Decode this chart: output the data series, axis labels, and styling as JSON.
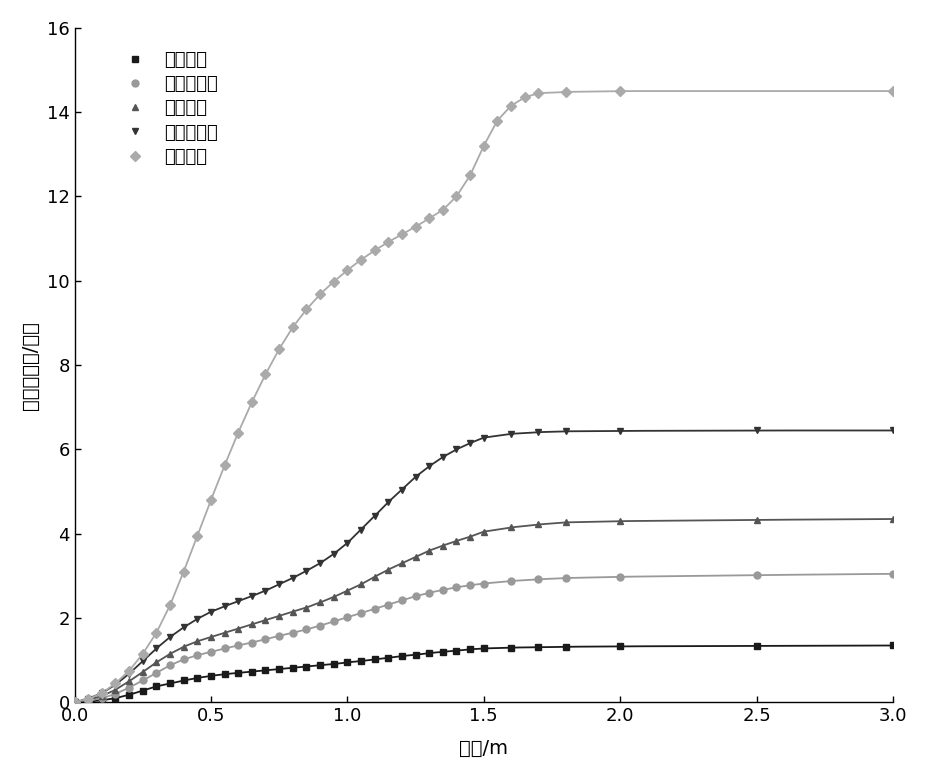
{
  "series": [
    {
      "label": "低收入户",
      "color": "#1a1a1a",
      "marker": "s",
      "markersize": 5,
      "plateau": 1.35,
      "steps": [
        [
          0.0,
          0.0
        ],
        [
          0.05,
          0.02
        ],
        [
          0.1,
          0.05
        ],
        [
          0.15,
          0.1
        ],
        [
          0.2,
          0.18
        ],
        [
          0.25,
          0.28
        ],
        [
          0.3,
          0.38
        ],
        [
          0.35,
          0.45
        ],
        [
          0.4,
          0.52
        ],
        [
          0.45,
          0.58
        ],
        [
          0.5,
          0.63
        ],
        [
          0.55,
          0.67
        ],
        [
          0.6,
          0.7
        ],
        [
          0.65,
          0.73
        ],
        [
          0.7,
          0.76
        ],
        [
          0.75,
          0.79
        ],
        [
          0.8,
          0.82
        ],
        [
          0.85,
          0.85
        ],
        [
          0.9,
          0.88
        ],
        [
          0.95,
          0.91
        ],
        [
          1.0,
          0.95
        ],
        [
          1.05,
          0.98
        ],
        [
          1.1,
          1.02
        ],
        [
          1.15,
          1.06
        ],
        [
          1.2,
          1.1
        ],
        [
          1.25,
          1.13
        ],
        [
          1.3,
          1.17
        ],
        [
          1.35,
          1.2
        ],
        [
          1.4,
          1.23
        ],
        [
          1.45,
          1.26
        ],
        [
          1.5,
          1.28
        ],
        [
          1.6,
          1.3
        ],
        [
          1.7,
          1.31
        ],
        [
          1.8,
          1.32
        ],
        [
          2.0,
          1.33
        ],
        [
          2.5,
          1.34
        ],
        [
          3.0,
          1.35
        ]
      ]
    },
    {
      "label": "中低收入户",
      "color": "#999999",
      "marker": "o",
      "markersize": 5,
      "plateau": 3.05,
      "steps": [
        [
          0.0,
          0.0
        ],
        [
          0.05,
          0.04
        ],
        [
          0.1,
          0.1
        ],
        [
          0.15,
          0.2
        ],
        [
          0.2,
          0.35
        ],
        [
          0.25,
          0.52
        ],
        [
          0.3,
          0.7
        ],
        [
          0.35,
          0.88
        ],
        [
          0.4,
          1.02
        ],
        [
          0.45,
          1.12
        ],
        [
          0.5,
          1.2
        ],
        [
          0.55,
          1.28
        ],
        [
          0.6,
          1.35
        ],
        [
          0.65,
          1.42
        ],
        [
          0.7,
          1.5
        ],
        [
          0.75,
          1.58
        ],
        [
          0.8,
          1.65
        ],
        [
          0.85,
          1.73
        ],
        [
          0.9,
          1.82
        ],
        [
          0.95,
          1.92
        ],
        [
          1.0,
          2.02
        ],
        [
          1.05,
          2.12
        ],
        [
          1.1,
          2.22
        ],
        [
          1.15,
          2.32
        ],
        [
          1.2,
          2.42
        ],
        [
          1.25,
          2.52
        ],
        [
          1.3,
          2.6
        ],
        [
          1.35,
          2.67
        ],
        [
          1.4,
          2.73
        ],
        [
          1.45,
          2.78
        ],
        [
          1.5,
          2.82
        ],
        [
          1.6,
          2.88
        ],
        [
          1.7,
          2.92
        ],
        [
          1.8,
          2.95
        ],
        [
          2.0,
          2.98
        ],
        [
          2.5,
          3.02
        ],
        [
          3.0,
          3.05
        ]
      ]
    },
    {
      "label": "中收入户",
      "color": "#555555",
      "marker": "^",
      "markersize": 5,
      "plateau": 4.35,
      "steps": [
        [
          0.0,
          0.0
        ],
        [
          0.05,
          0.06
        ],
        [
          0.1,
          0.15
        ],
        [
          0.15,
          0.3
        ],
        [
          0.2,
          0.5
        ],
        [
          0.25,
          0.72
        ],
        [
          0.3,
          0.95
        ],
        [
          0.35,
          1.15
        ],
        [
          0.4,
          1.32
        ],
        [
          0.45,
          1.45
        ],
        [
          0.5,
          1.55
        ],
        [
          0.55,
          1.65
        ],
        [
          0.6,
          1.75
        ],
        [
          0.65,
          1.85
        ],
        [
          0.7,
          1.95
        ],
        [
          0.75,
          2.05
        ],
        [
          0.8,
          2.15
        ],
        [
          0.85,
          2.25
        ],
        [
          0.9,
          2.37
        ],
        [
          0.95,
          2.5
        ],
        [
          1.0,
          2.65
        ],
        [
          1.05,
          2.8
        ],
        [
          1.1,
          2.98
        ],
        [
          1.15,
          3.15
        ],
        [
          1.2,
          3.3
        ],
        [
          1.25,
          3.45
        ],
        [
          1.3,
          3.6
        ],
        [
          1.35,
          3.72
        ],
        [
          1.4,
          3.83
        ],
        [
          1.45,
          3.93
        ],
        [
          1.5,
          4.05
        ],
        [
          1.6,
          4.15
        ],
        [
          1.7,
          4.22
        ],
        [
          1.8,
          4.27
        ],
        [
          2.0,
          4.3
        ],
        [
          2.5,
          4.33
        ],
        [
          3.0,
          4.35
        ]
      ]
    },
    {
      "label": "中高收入户",
      "color": "#333333",
      "marker": "v",
      "markersize": 5,
      "plateau": 6.45,
      "steps": [
        [
          0.0,
          0.0
        ],
        [
          0.05,
          0.09
        ],
        [
          0.1,
          0.22
        ],
        [
          0.15,
          0.42
        ],
        [
          0.2,
          0.68
        ],
        [
          0.25,
          0.98
        ],
        [
          0.3,
          1.28
        ],
        [
          0.35,
          1.55
        ],
        [
          0.4,
          1.78
        ],
        [
          0.45,
          1.98
        ],
        [
          0.5,
          2.15
        ],
        [
          0.55,
          2.28
        ],
        [
          0.6,
          2.4
        ],
        [
          0.65,
          2.52
        ],
        [
          0.7,
          2.65
        ],
        [
          0.75,
          2.8
        ],
        [
          0.8,
          2.95
        ],
        [
          0.85,
          3.12
        ],
        [
          0.9,
          3.3
        ],
        [
          0.95,
          3.52
        ],
        [
          1.0,
          3.78
        ],
        [
          1.05,
          4.1
        ],
        [
          1.1,
          4.42
        ],
        [
          1.15,
          4.75
        ],
        [
          1.2,
          5.05
        ],
        [
          1.25,
          5.35
        ],
        [
          1.3,
          5.6
        ],
        [
          1.35,
          5.82
        ],
        [
          1.4,
          6.0
        ],
        [
          1.45,
          6.15
        ],
        [
          1.5,
          6.28
        ],
        [
          1.6,
          6.37
        ],
        [
          1.7,
          6.41
        ],
        [
          1.8,
          6.43
        ],
        [
          2.0,
          6.44
        ],
        [
          2.5,
          6.45
        ],
        [
          3.0,
          6.45
        ]
      ]
    },
    {
      "label": "高收入户",
      "color": "#aaaaaa",
      "marker": "D",
      "markersize": 5,
      "plateau": 14.5,
      "steps": [
        [
          0.0,
          0.0
        ],
        [
          0.05,
          0.08
        ],
        [
          0.1,
          0.22
        ],
        [
          0.15,
          0.45
        ],
        [
          0.2,
          0.75
        ],
        [
          0.25,
          1.15
        ],
        [
          0.3,
          1.65
        ],
        [
          0.35,
          2.3
        ],
        [
          0.4,
          3.1
        ],
        [
          0.45,
          3.95
        ],
        [
          0.5,
          4.8
        ],
        [
          0.55,
          5.62
        ],
        [
          0.6,
          6.4
        ],
        [
          0.65,
          7.12
        ],
        [
          0.7,
          7.78
        ],
        [
          0.75,
          8.38
        ],
        [
          0.8,
          8.9
        ],
        [
          0.85,
          9.32
        ],
        [
          0.9,
          9.68
        ],
        [
          0.95,
          9.98
        ],
        [
          1.0,
          10.25
        ],
        [
          1.05,
          10.5
        ],
        [
          1.1,
          10.72
        ],
        [
          1.15,
          10.92
        ],
        [
          1.2,
          11.1
        ],
        [
          1.25,
          11.28
        ],
        [
          1.3,
          11.48
        ],
        [
          1.35,
          11.68
        ],
        [
          1.4,
          12.0
        ],
        [
          1.45,
          12.5
        ],
        [
          1.5,
          13.2
        ],
        [
          1.55,
          13.8
        ],
        [
          1.6,
          14.15
        ],
        [
          1.65,
          14.35
        ],
        [
          1.7,
          14.45
        ],
        [
          1.8,
          14.48
        ],
        [
          2.0,
          14.5
        ],
        [
          3.0,
          14.5
        ]
      ]
    }
  ],
  "xlim": [
    0.0,
    3.0
  ],
  "ylim": [
    0,
    16
  ],
  "xlabel": "水深/m",
  "ylabel": "财产损失值/万元",
  "xticks": [
    0.0,
    0.5,
    1.0,
    1.5,
    2.0,
    2.5,
    3.0
  ],
  "yticks": [
    0,
    2,
    4,
    6,
    8,
    10,
    12,
    14,
    16
  ],
  "background_color": "#ffffff"
}
